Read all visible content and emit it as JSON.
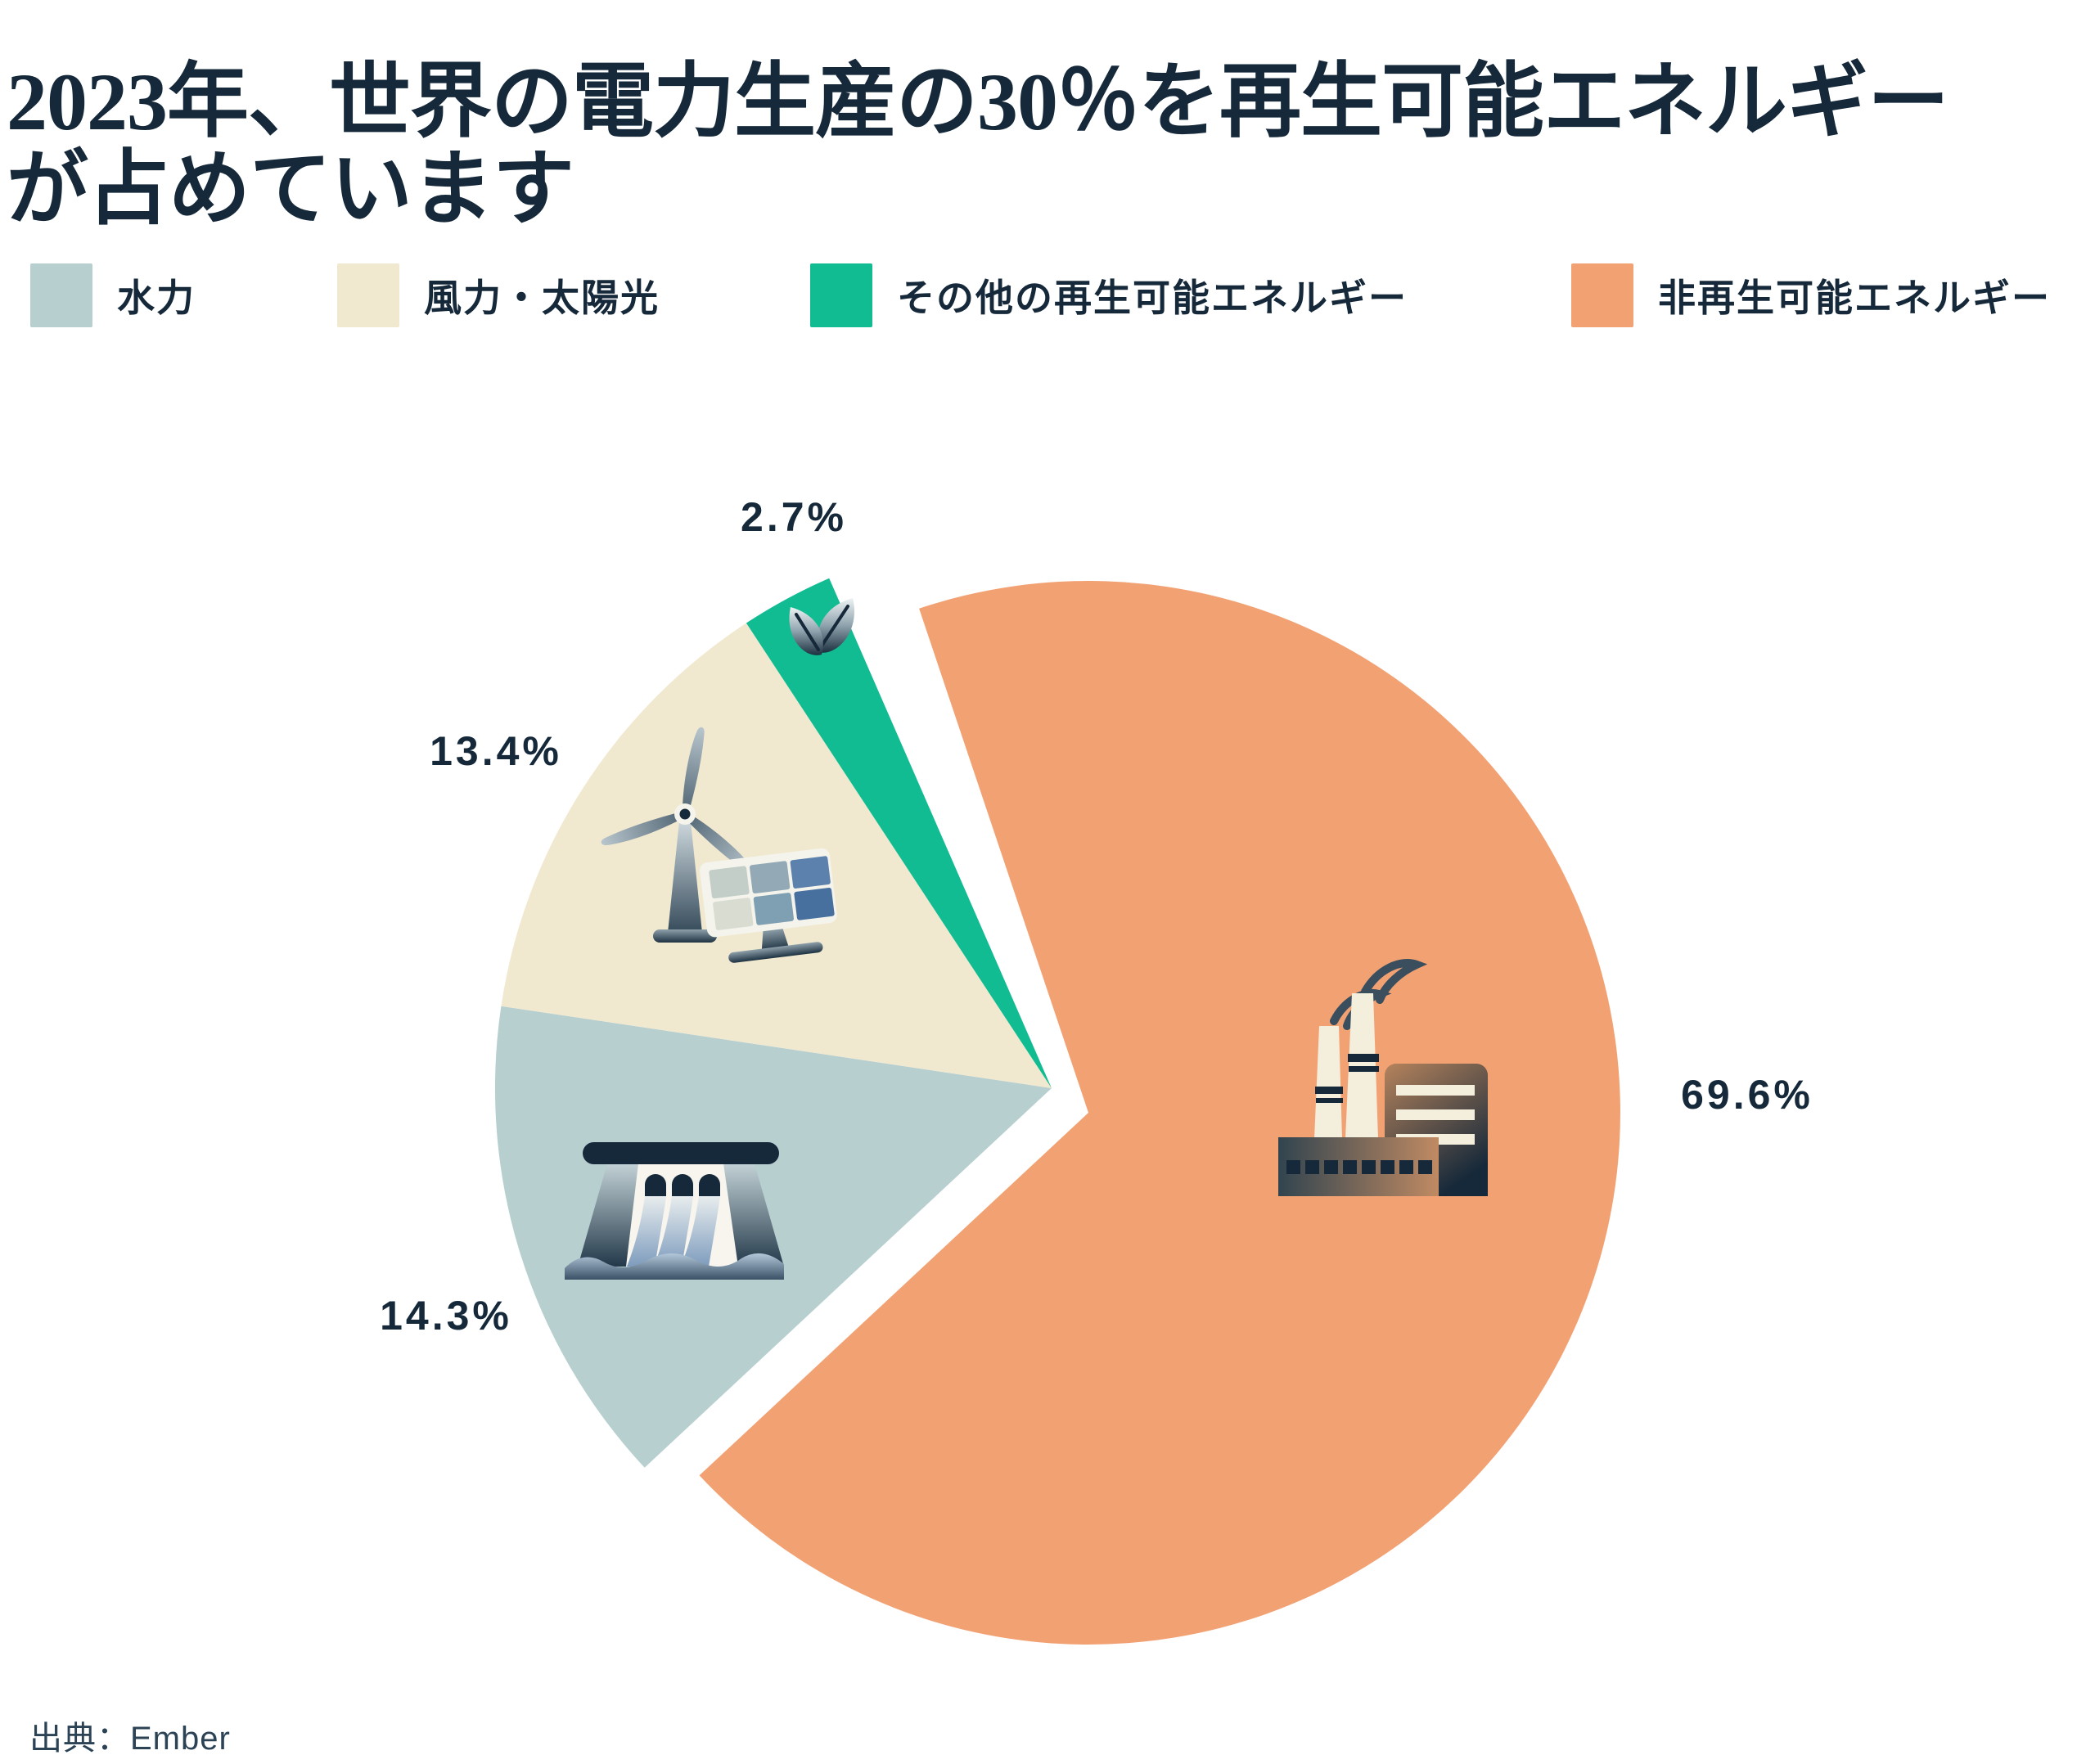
{
  "title_lines": [
    "2023年、世界の電力生産の30％を再生可能エネルギー",
    "が占めています"
  ],
  "source": "出典：Ember",
  "chart_data": {
    "type": "pie",
    "title": "2023年、世界の電力生産の30％を再生可能エネルギーが占めています",
    "legend_position": "top",
    "exploded": true,
    "start_angle_deg": 227,
    "slices": [
      {
        "id": "hydro",
        "label": "水力",
        "value": 14.3,
        "display": "14.3%",
        "color": "#b8cfd0",
        "icon": "dam-icon"
      },
      {
        "id": "wind-solar",
        "label": "風力・太陽光",
        "value": 13.4,
        "display": "13.4%",
        "color": "#f0e9cf",
        "icon": "wind-turbine-solar-panel-icon"
      },
      {
        "id": "other-renewables",
        "label": "その他の再生可能エネルギー",
        "value": 2.7,
        "display": "2.7%",
        "color": "#12bc92",
        "icon": "leaf-icon"
      },
      {
        "id": "non-renewables",
        "label": "非再生可能エネルギー",
        "value": 69.6,
        "display": "69.6%",
        "color": "#f2a173",
        "icon": "factory-icon"
      }
    ],
    "colors": {
      "text": "#16293a",
      "background": "#ffffff"
    }
  }
}
